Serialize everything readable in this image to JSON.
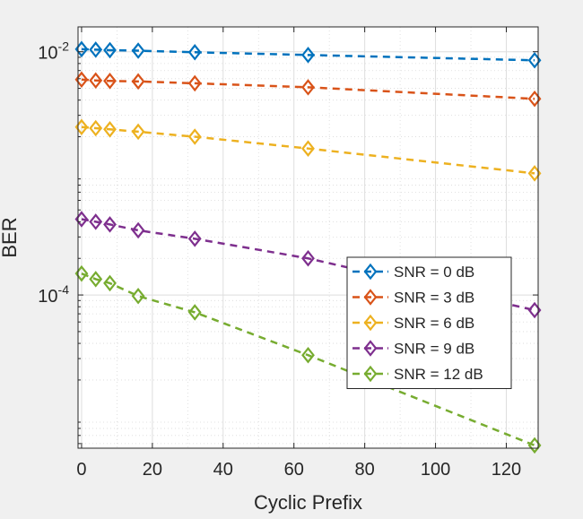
{
  "chart_data": {
    "type": "line",
    "title": "",
    "xlabel": "Cyclic Prefix",
    "ylabel": "BER",
    "xlim": [
      -1,
      129
    ],
    "ylim": [
      5.5e-06,
      0.016
    ],
    "yscale": "log",
    "grid": true,
    "minor_grid": true,
    "legend_position": "bottom-right",
    "x_ticks": [
      0,
      20,
      40,
      60,
      80,
      100,
      120
    ],
    "x_tick_labels": [
      "0",
      "20",
      "40",
      "60",
      "80",
      "100",
      "120"
    ],
    "y_ticks": [
      {
        "value": 0.01,
        "base": "10",
        "exp": "-2"
      },
      {
        "value": 0.0001,
        "base": "10",
        "exp": "-4"
      }
    ],
    "x": [
      0,
      4,
      8,
      16,
      32,
      64,
      128
    ],
    "series": [
      {
        "name": "SNR = 0 dB",
        "color": "#0072bd",
        "values": [
          0.0105,
          0.0104,
          0.0103,
          0.0102,
          0.0099,
          0.0094,
          0.0085
        ]
      },
      {
        "name": "SNR = 3 dB",
        "color": "#d95319",
        "values": [
          0.0059,
          0.0058,
          0.00575,
          0.0057,
          0.0055,
          0.0051,
          0.0041
        ]
      },
      {
        "name": "SNR = 6 dB",
        "color": "#edb120",
        "values": [
          0.0024,
          0.00235,
          0.0023,
          0.0022,
          0.002,
          0.0016,
          0.001
        ]
      },
      {
        "name": "SNR = 9 dB",
        "color": "#7e2f8e",
        "values": [
          0.00042,
          0.0004,
          0.00038,
          0.00034,
          0.00029,
          0.0002,
          7.5e-05
        ]
      },
      {
        "name": "SNR = 12 dB",
        "color": "#77ac30",
        "values": [
          0.00015,
          0.000135,
          0.000125,
          9.8e-05,
          7.2e-05,
          3.2e-05,
          5.8e-06
        ]
      }
    ]
  }
}
